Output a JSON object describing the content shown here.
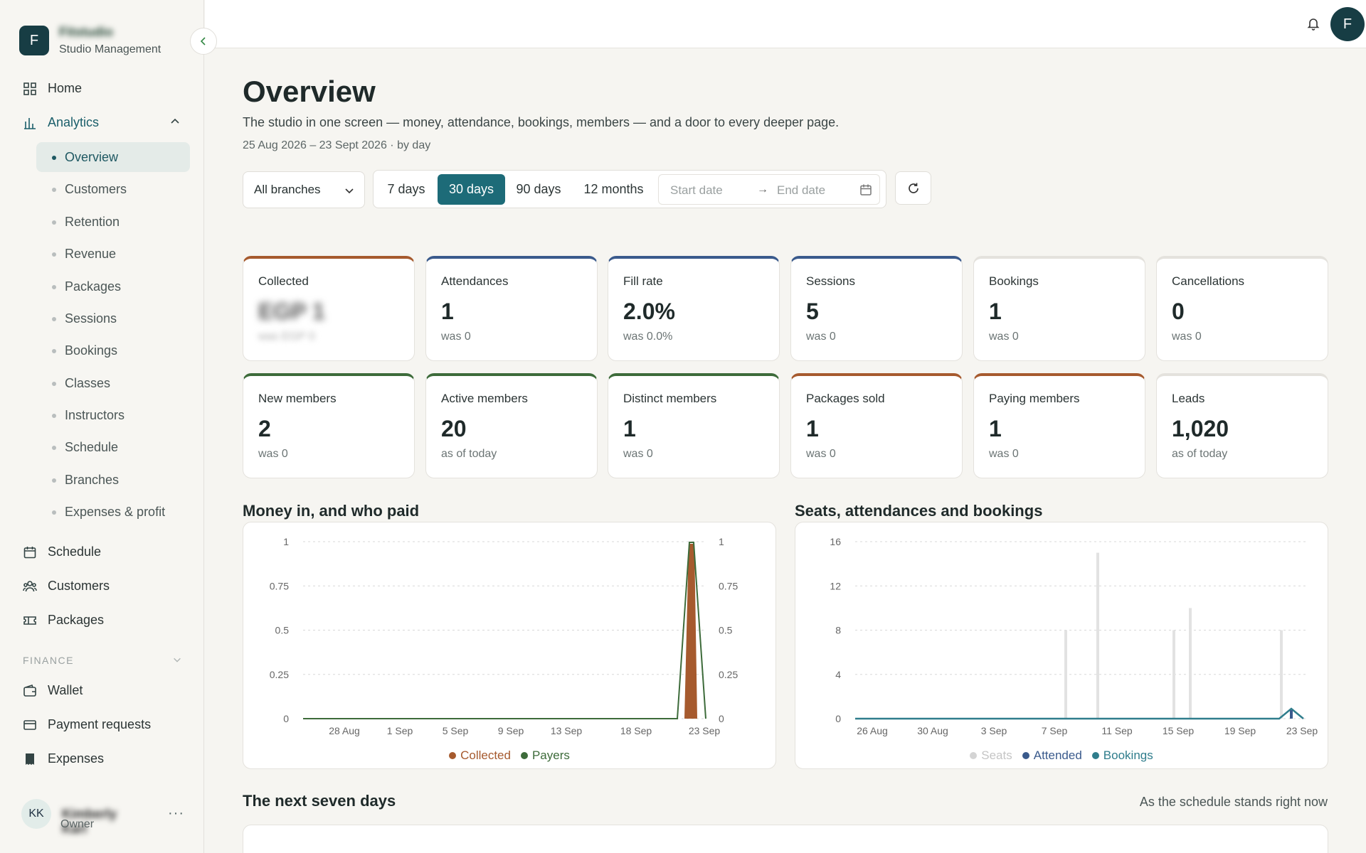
{
  "brand": {
    "logo_letter": "F",
    "name": "Fitstudio",
    "subtitle": "Studio Management"
  },
  "nav": {
    "home": "Home",
    "analytics": "Analytics",
    "analytics_items": [
      "Overview",
      "Customers",
      "Retention",
      "Revenue",
      "Packages",
      "Sessions",
      "Bookings",
      "Classes",
      "Instructors",
      "Schedule",
      "Branches",
      "Expenses & profit"
    ],
    "schedule": "Schedule",
    "customers": "Customers",
    "packages": "Packages",
    "finance_label": "FINANCE",
    "wallet": "Wallet",
    "payment_requests": "Payment requests",
    "expenses": "Expenses"
  },
  "user": {
    "initials": "KK",
    "name": "Kimberly Karl",
    "role": "Owner",
    "more": "···"
  },
  "topbar": {
    "avatar_letter": "F"
  },
  "page": {
    "title": "Overview",
    "subtitle": "The studio in one screen — money, attendance, bookings, members — and a door to every deeper page.",
    "range": "25 Aug 2026 – 23 Sept 2026 · by day"
  },
  "filters": {
    "branch": "All branches",
    "ranges": [
      "7 days",
      "30 days",
      "90 days",
      "12 months"
    ],
    "active_range": "30 days",
    "start_placeholder": "Start date",
    "arrow": "→",
    "end_placeholder": "End date"
  },
  "kpis": [
    {
      "label": "Collected",
      "value": "EGP 1",
      "note": "was EGP 0",
      "accent": "#a65a2e"
    },
    {
      "label": "Attendances",
      "value": "1",
      "note": "was 0",
      "accent": "#3a5a8c"
    },
    {
      "label": "Fill rate",
      "value": "2.0%",
      "note": "was 0.0%",
      "accent": "#3a5a8c"
    },
    {
      "label": "Sessions",
      "value": "5",
      "note": "was 0",
      "accent": "#3a5a8c"
    },
    {
      "label": "Bookings",
      "value": "1",
      "note": "was 0",
      "accent": "#e4e2dd"
    },
    {
      "label": "Cancellations",
      "value": "0",
      "note": "was 0",
      "accent": "#e4e2dd"
    },
    {
      "label": "New members",
      "value": "2",
      "note": "was 0",
      "accent": "#3d6b3a"
    },
    {
      "label": "Active members",
      "value": "20",
      "note": "as of today",
      "accent": "#3d6b3a"
    },
    {
      "label": "Distinct members",
      "value": "1",
      "note": "was 0",
      "accent": "#3d6b3a"
    },
    {
      "label": "Packages sold",
      "value": "1",
      "note": "was 0",
      "accent": "#a65a2e"
    },
    {
      "label": "Paying members",
      "value": "1",
      "note": "was 0",
      "accent": "#a65a2e"
    },
    {
      "label": "Leads",
      "value": "1,020",
      "note": "as of today",
      "accent": "#e4e2dd"
    }
  ],
  "money_chart": {
    "title": "Money in, and who paid",
    "chart_data": {
      "type": "area",
      "x_ticks": [
        "28 Aug",
        "1 Sep",
        "5 Sep",
        "9 Sep",
        "13 Sep",
        "18 Sep",
        "23 Sep"
      ],
      "y_ticks_left": [
        "1",
        "0.75",
        "0.5",
        "0.25",
        "0"
      ],
      "y_ticks_right": [
        "1",
        "0.75",
        "0.5",
        "0.25",
        "0"
      ],
      "ylim": [
        0,
        1
      ],
      "series": [
        {
          "name": "Collected",
          "color": "#a65a2e",
          "peak_date": "22 Sep",
          "peak_value": 1
        },
        {
          "name": "Payers",
          "color": "#3d6b3a",
          "peak_date": "22 Sep",
          "peak_value": 1
        }
      ]
    }
  },
  "seats_chart": {
    "title": "Seats, attendances and bookings",
    "chart_data": {
      "type": "bar",
      "x_ticks": [
        "26 Aug",
        "30 Aug",
        "3 Sep",
        "7 Sep",
        "11 Sep",
        "15 Sep",
        "19 Sep",
        "23 Sep"
      ],
      "y_ticks": [
        "16",
        "12",
        "8",
        "4",
        "0"
      ],
      "ylim": [
        0,
        16
      ],
      "series": [
        {
          "name": "Seats",
          "color": "#c9c9c9",
          "values": {
            "9 Sep": 8,
            "11 Sep": 15,
            "15 Sep": 8,
            "16 Sep": 10,
            "22 Sep": 8
          }
        },
        {
          "name": "Attended",
          "color": "#3a5a8c",
          "values": {
            "23 Sep": 1
          }
        },
        {
          "name": "Bookings",
          "color": "#2f7d8c",
          "values": {
            "23 Sep": 1
          }
        }
      ]
    }
  },
  "next_days": {
    "title": "The next seven days",
    "note": "As the schedule stands right now"
  }
}
